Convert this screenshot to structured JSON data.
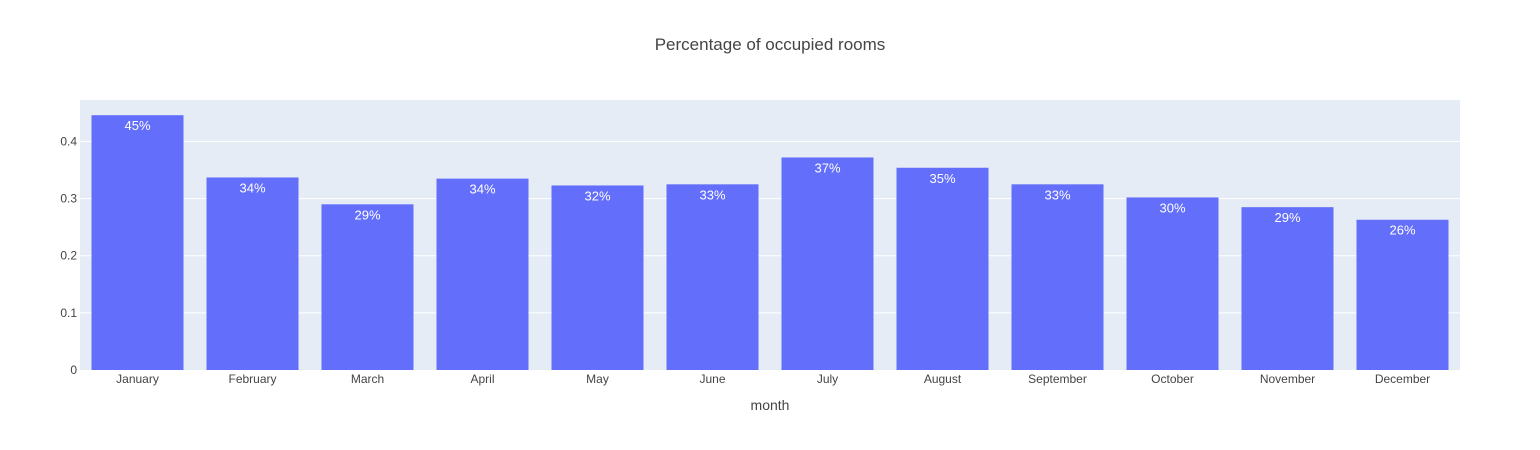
{
  "chart_data": {
    "type": "bar",
    "title": "Percentage of occupied rooms",
    "xlabel": "month",
    "ylabel": "",
    "categories": [
      "January",
      "February",
      "March",
      "April",
      "May",
      "June",
      "July",
      "August",
      "September",
      "October",
      "November",
      "December"
    ],
    "values": [
      0.446,
      0.337,
      0.29,
      0.335,
      0.323,
      0.325,
      0.372,
      0.354,
      0.325,
      0.302,
      0.285,
      0.263
    ],
    "data_labels": [
      "45%",
      "34%",
      "29%",
      "34%",
      "32%",
      "33%",
      "37%",
      "35%",
      "33%",
      "30%",
      "29%",
      "26%"
    ],
    "ylim": [
      0,
      0.4726
    ],
    "yticks": [
      0,
      0.1,
      0.2,
      0.3,
      0.4
    ],
    "ytick_labels": [
      "0",
      "0.1",
      "0.2",
      "0.3",
      "0.4"
    ],
    "grid": true,
    "legend": "none",
    "colors": {
      "bar": "#636efa",
      "plot_bg": "#e5ecf6",
      "grid": "#ffffff",
      "text": "#444444",
      "label": "#ffffff"
    }
  }
}
